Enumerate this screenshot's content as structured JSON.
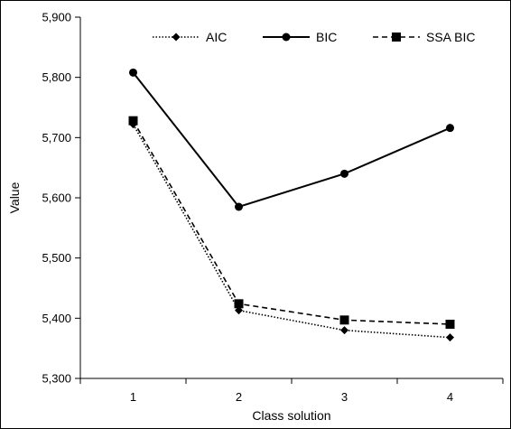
{
  "chart_data": {
    "type": "line",
    "title": "",
    "xlabel": "Class solution",
    "ylabel": "Value",
    "categories": [
      "1",
      "2",
      "3",
      "4"
    ],
    "ylim": [
      5300,
      5900
    ],
    "yticks": [
      5300,
      5400,
      5500,
      5600,
      5700,
      5800,
      5900
    ],
    "ytick_labels": [
      "5,300",
      "5,400",
      "5,500",
      "5,600",
      "5,700",
      "5,800",
      "5,900"
    ],
    "legend_position": "top-right",
    "grid": false,
    "series": [
      {
        "name": "AIC",
        "values": [
          5722,
          5413,
          5380,
          5368
        ],
        "marker": "diamond",
        "line_style": "dotted",
        "color": "#000000"
      },
      {
        "name": "BIC",
        "values": [
          5808,
          5585,
          5640,
          5716
        ],
        "marker": "circle",
        "line_style": "solid",
        "color": "#000000"
      },
      {
        "name": "SSA BIC",
        "values": [
          5728,
          5424,
          5397,
          5390
        ],
        "marker": "square",
        "line_style": "dashed",
        "color": "#000000"
      }
    ]
  }
}
